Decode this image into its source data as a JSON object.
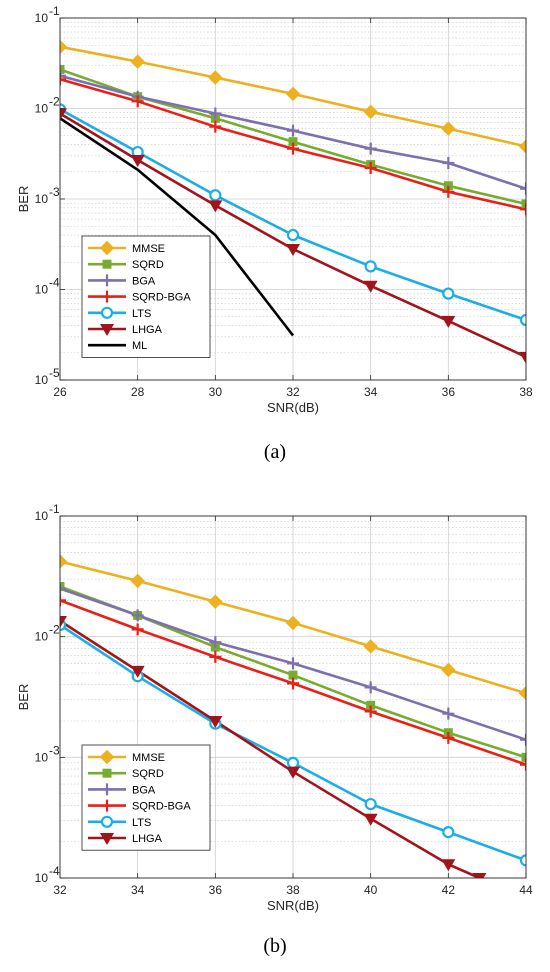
{
  "chart_data": [
    {
      "type": "line",
      "caption": "(a)",
      "xlabel": "SNR(dB)",
      "ylabel": "BER",
      "xlim": [
        26,
        38
      ],
      "xticks": [
        26,
        28,
        30,
        32,
        34,
        36,
        38
      ],
      "yscale": "log",
      "ylim": [
        1e-05,
        0.1
      ],
      "yticks": [
        {
          "value": 1e-05,
          "exp": "-5"
        },
        {
          "value": 0.0001,
          "exp": "-4"
        },
        {
          "value": 0.001,
          "exp": "-3"
        },
        {
          "value": 0.01,
          "exp": "-2"
        },
        {
          "value": 0.1,
          "exp": "-1"
        }
      ],
      "grid": true,
      "legend_position": "bottom-left",
      "series": [
        {
          "name": "MMSE",
          "color": "#EDB120",
          "marker": "diamond",
          "x": [
            26,
            28,
            30,
            32,
            34,
            36,
            38
          ],
          "y": [
            0.048,
            0.033,
            0.022,
            0.0145,
            0.0092,
            0.006,
            0.0038
          ]
        },
        {
          "name": "SQRD",
          "color": "#77AC30",
          "marker": "square",
          "x": [
            26,
            28,
            30,
            32,
            34,
            36,
            38
          ],
          "y": [
            0.027,
            0.0135,
            0.0078,
            0.0043,
            0.0024,
            0.0014,
            0.00088
          ]
        },
        {
          "name": "BGA",
          "color": "#7E6FB0",
          "marker": "plus",
          "x": [
            26,
            28,
            30,
            32,
            34,
            36,
            38
          ],
          "y": [
            0.023,
            0.0135,
            0.0088,
            0.0057,
            0.0036,
            0.0025,
            0.0013
          ]
        },
        {
          "name": "SQRD-BGA",
          "color": "#E8201A",
          "marker": "plus",
          "x": [
            26,
            28,
            30,
            32,
            34,
            36,
            38
          ],
          "y": [
            0.021,
            0.012,
            0.0063,
            0.0036,
            0.0022,
            0.0012,
            0.00077
          ]
        },
        {
          "name": "LTS",
          "color": "#1BAEE6",
          "marker": "circle",
          "x": [
            26,
            28,
            30,
            32,
            34,
            36,
            38
          ],
          "y": [
            0.0098,
            0.0033,
            0.0011,
            0.0004,
            0.00018,
            9e-05,
            4.6e-05
          ]
        },
        {
          "name": "LHGA",
          "color": "#A2141B",
          "marker": "triangle-down",
          "x": [
            26,
            28,
            30,
            32,
            34,
            36,
            38
          ],
          "y": [
            0.0088,
            0.0027,
            0.00085,
            0.00028,
            0.00011,
            4.5e-05,
            1.8e-05
          ]
        },
        {
          "name": "ML",
          "color": "#000000",
          "marker": "none",
          "x": [
            26,
            28,
            30,
            32
          ],
          "y": [
            0.0078,
            0.0021,
            0.0004,
            3.1e-05
          ]
        }
      ]
    },
    {
      "type": "line",
      "caption": "(b)",
      "xlabel": "SNR(dB)",
      "ylabel": "BER",
      "xlim": [
        32,
        44
      ],
      "xticks": [
        32,
        34,
        36,
        38,
        40,
        42,
        44
      ],
      "yscale": "log",
      "ylim": [
        0.0001,
        0.1
      ],
      "yticks": [
        {
          "value": 0.0001,
          "exp": "-4"
        },
        {
          "value": 0.001,
          "exp": "-3"
        },
        {
          "value": 0.01,
          "exp": "-2"
        },
        {
          "value": 0.1,
          "exp": "-1"
        }
      ],
      "grid": true,
      "legend_position": "bottom-left",
      "series": [
        {
          "name": "MMSE",
          "color": "#EDB120",
          "marker": "diamond",
          "x": [
            32,
            34,
            36,
            38,
            40,
            42,
            44
          ],
          "y": [
            0.042,
            0.029,
            0.0195,
            0.013,
            0.0083,
            0.0053,
            0.0034
          ]
        },
        {
          "name": "SQRD",
          "color": "#77AC30",
          "marker": "square",
          "x": [
            32,
            34,
            36,
            38,
            40,
            42,
            44
          ],
          "y": [
            0.026,
            0.015,
            0.0082,
            0.0048,
            0.0027,
            0.0016,
            0.001
          ]
        },
        {
          "name": "BGA",
          "color": "#7E6FB0",
          "marker": "plus",
          "x": [
            32,
            34,
            36,
            38,
            40,
            42,
            44
          ],
          "y": [
            0.025,
            0.015,
            0.009,
            0.006,
            0.0038,
            0.0023,
            0.0014
          ]
        },
        {
          "name": "SQRD-BGA",
          "color": "#E8201A",
          "marker": "plus",
          "x": [
            32,
            34,
            36,
            38,
            40,
            42,
            44
          ],
          "y": [
            0.02,
            0.0115,
            0.0068,
            0.0041,
            0.0024,
            0.00145,
            0.00087
          ]
        },
        {
          "name": "LTS",
          "color": "#1BAEE6",
          "marker": "circle",
          "x": [
            32,
            34,
            36,
            38,
            40,
            42,
            44
          ],
          "y": [
            0.0125,
            0.0047,
            0.0019,
            0.0009,
            0.00041,
            0.00024,
            0.00014
          ]
        },
        {
          "name": "LHGA",
          "color": "#A2141B",
          "marker": "triangle-down",
          "x": [
            32,
            34,
            36,
            38,
            40,
            42,
            42.8
          ],
          "y": [
            0.0135,
            0.0052,
            0.002,
            0.00076,
            0.00031,
            0.00013,
            0.0001
          ]
        }
      ]
    }
  ]
}
